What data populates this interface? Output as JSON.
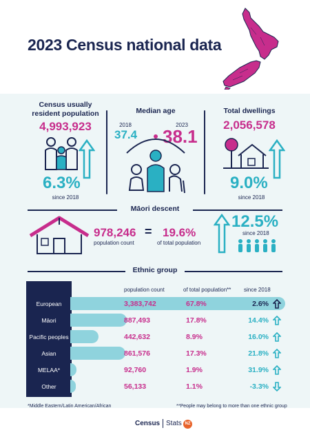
{
  "header": {
    "title": "2023 Census national data"
  },
  "stats": {
    "population": {
      "title_line1": "Census usually",
      "title_line2": "resident population",
      "value": "4,993,923",
      "change": "6.3%",
      "since": "since 2018"
    },
    "median_age": {
      "title": "Median age",
      "year_2018": "2018",
      "value_2018": "37.4",
      "year_2023": "2023",
      "value_2023": "38.1"
    },
    "dwellings": {
      "title": "Total dwellings",
      "value": "2,056,578",
      "change": "9.0%",
      "since": "since 2018"
    }
  },
  "maori": {
    "title": "Māori descent",
    "count": "978,246",
    "count_label": "population count",
    "equals": "=",
    "pct": "19.6%",
    "pct_label": "of total population",
    "change": "12.5%",
    "since": "since 2018"
  },
  "ethnic": {
    "title": "Ethnic group",
    "col_count": "population count",
    "col_pct": "of total population**",
    "col_since": "since 2018",
    "rows": [
      {
        "label": "European",
        "count": "3,383,742",
        "pct": "67.8%",
        "since": "2.6%",
        "share": 67.8,
        "direction": "up"
      },
      {
        "label": "Māori",
        "count": "887,493",
        "pct": "17.8%",
        "since": "14.4%",
        "share": 17.8,
        "direction": "up"
      },
      {
        "label": "Pacific peoples",
        "count": "442,632",
        "pct": "8.9%",
        "since": "16.0%",
        "share": 8.9,
        "direction": "up"
      },
      {
        "label": "Asian",
        "count": "861,576",
        "pct": "17.3%",
        "since": "21.8%",
        "share": 17.3,
        "direction": "up"
      },
      {
        "label": "MELAA*",
        "count": "92,760",
        "pct": "1.9%",
        "since": "31.9%",
        "share": 1.9,
        "direction": "up"
      },
      {
        "label": "Other",
        "count": "56,133",
        "pct": "1.1%",
        "since": "-3.3%",
        "share": 1.1,
        "direction": "down"
      }
    ]
  },
  "footnotes": {
    "melaa": "*Middle Eastern/Latin American/African",
    "multiple": "**People may belong to more than one ethnic group"
  },
  "logo": {
    "census": "Census",
    "stats": "Stats",
    "badge": "NZ"
  },
  "colors": {
    "navy": "#1a2550",
    "magenta": "#c72d8c",
    "teal": "#2ab0c3",
    "light_teal": "#8fd3dd",
    "background": "#eef6f7"
  }
}
